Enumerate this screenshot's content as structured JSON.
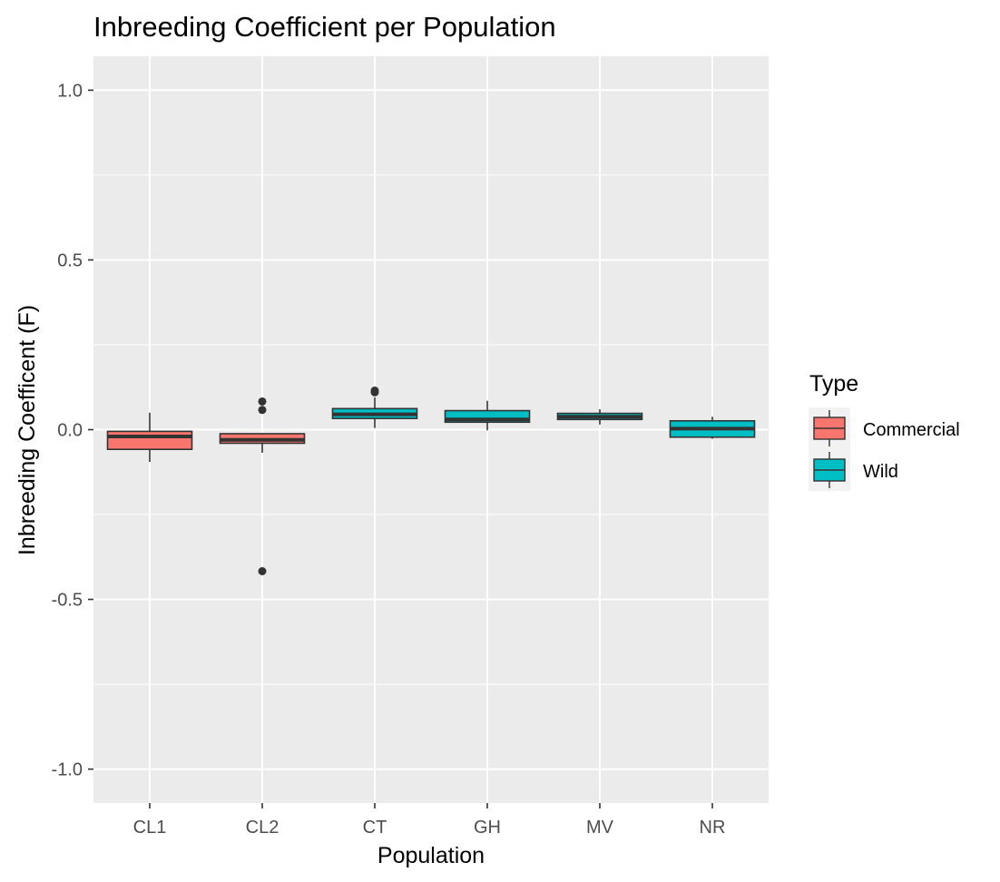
{
  "chart_data": {
    "type": "box",
    "title": "Inbreeding Coefficient per Population",
    "xlabel": "Population",
    "ylabel": "Inbreeding Coefficent (F)",
    "ylim": [
      -1.1,
      1.1
    ],
    "yticks": [
      -1.0,
      -0.5,
      0.0,
      0.5,
      1.0
    ],
    "ytick_labels": [
      "-1.0",
      "-0.5",
      "0.0",
      "0.5",
      "1.0"
    ],
    "categories": [
      "CL1",
      "CL2",
      "CT",
      "GH",
      "MV",
      "NR"
    ],
    "grid": true,
    "legend": {
      "title": "Type",
      "position": "right",
      "entries": [
        {
          "label": "Commercial",
          "color": "#F8766D"
        },
        {
          "label": "Wild",
          "color": "#00BFC4"
        }
      ]
    },
    "boxes": [
      {
        "category": "CL1",
        "type": "Commercial",
        "whisker_low": -0.095,
        "q1": -0.058,
        "median": -0.02,
        "q3": -0.005,
        "whisker_high": 0.05,
        "outliers": []
      },
      {
        "category": "CL2",
        "type": "Commercial",
        "whisker_low": -0.068,
        "q1": -0.04,
        "median": -0.03,
        "q3": -0.012,
        "whisker_high": -0.01,
        "outliers": [
          0.083,
          0.058,
          -0.417
        ]
      },
      {
        "category": "CT",
        "type": "Wild",
        "whisker_low": 0.005,
        "q1": 0.033,
        "median": 0.045,
        "q3": 0.062,
        "whisker_high": 0.095,
        "outliers": [
          0.115,
          0.11
        ]
      },
      {
        "category": "GH",
        "type": "Wild",
        "whisker_low": -0.002,
        "q1": 0.022,
        "median": 0.03,
        "q3": 0.056,
        "whisker_high": 0.085,
        "outliers": []
      },
      {
        "category": "MV",
        "type": "Wild",
        "whisker_low": 0.015,
        "q1": 0.03,
        "median": 0.038,
        "q3": 0.048,
        "whisker_high": 0.06,
        "outliers": []
      },
      {
        "category": "NR",
        "type": "Wild",
        "whisker_low": -0.027,
        "q1": -0.022,
        "median": 0.003,
        "q3": 0.026,
        "whisker_high": 0.038,
        "outliers": []
      }
    ],
    "colors": {
      "panel_background": "#EBEBEB",
      "grid_major": "#FFFFFF",
      "box_outline": "#333333"
    }
  }
}
